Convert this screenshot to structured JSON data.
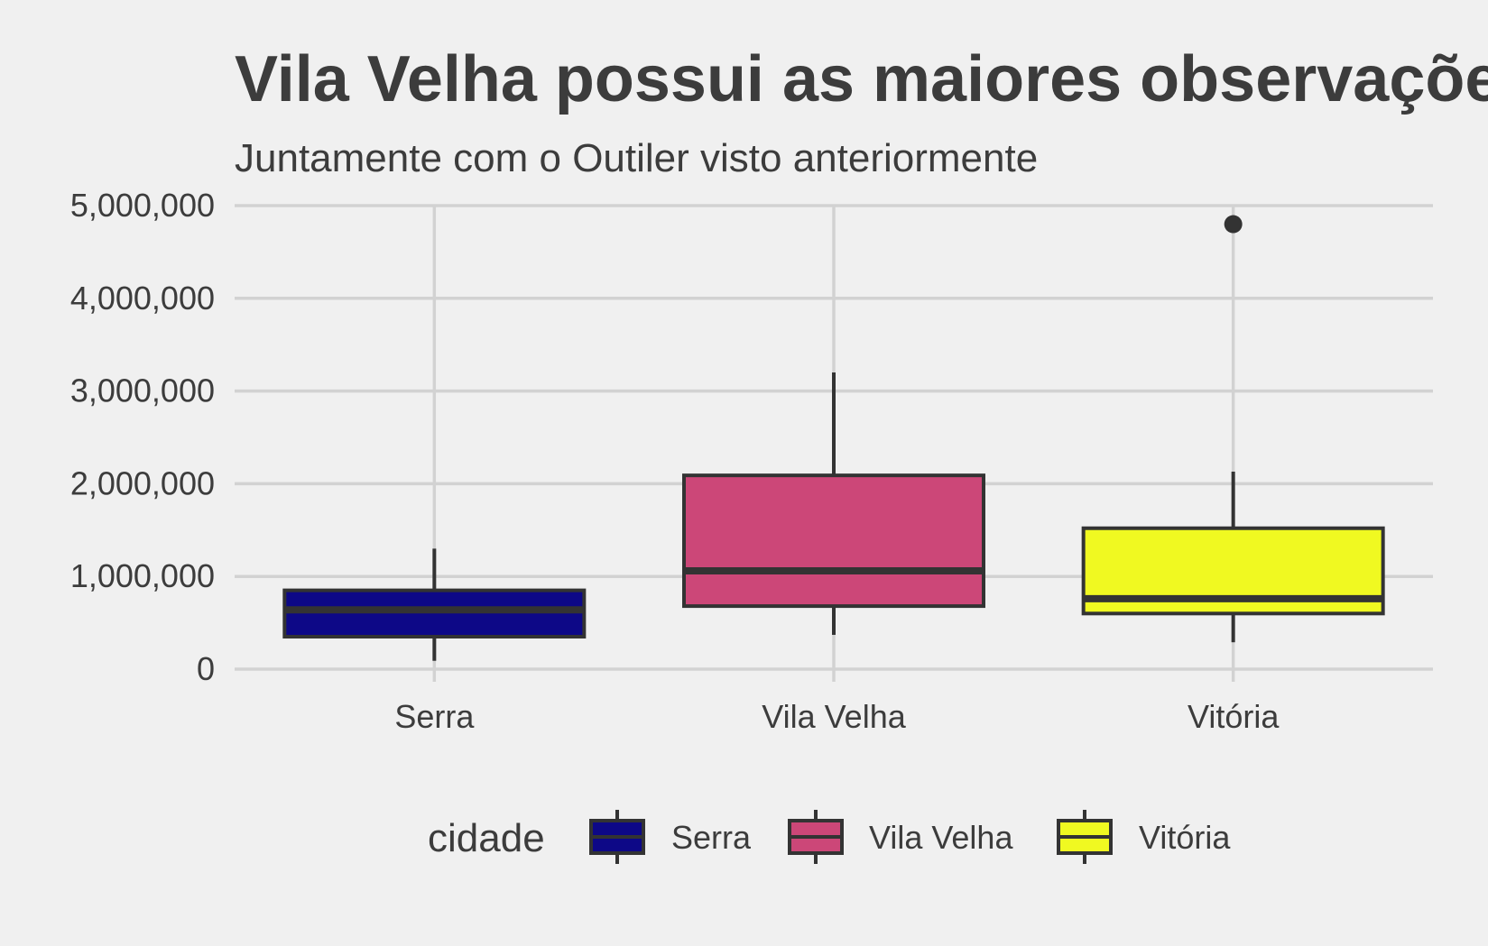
{
  "chart_data": {
    "type": "boxplot",
    "title": "Vila Velha possui as maiores observações",
    "subtitle": "Juntamente com o Outiler visto anteriormente",
    "xlabel": "",
    "ylabel": "",
    "ylim": [
      0,
      5000000
    ],
    "y_ticks": [
      0,
      1000000,
      2000000,
      3000000,
      4000000,
      5000000
    ],
    "y_tick_labels": [
      "0",
      "1,000,000",
      "2,000,000",
      "3,000,000",
      "4,000,000",
      "5,000,000"
    ],
    "grid": true,
    "legend": {
      "title": "cidade",
      "placement": "bottom"
    },
    "categories": [
      "Serra",
      "Vila Velha",
      "Vitória"
    ],
    "series": [
      {
        "name": "Serra",
        "color": "#0d0887",
        "min": 90000,
        "q1": 350000,
        "median": 640000,
        "q3": 850000,
        "max": 1300000,
        "outliers": []
      },
      {
        "name": "Vila Velha",
        "color": "#cc4778",
        "min": 370000,
        "q1": 680000,
        "median": 1060000,
        "q3": 2090000,
        "max": 3200000,
        "outliers": []
      },
      {
        "name": "Vitória",
        "color": "#f0f921",
        "min": 290000,
        "q1": 600000,
        "median": 760000,
        "q3": 1520000,
        "max": 2130000,
        "outliers": [
          4800000
        ]
      }
    ]
  }
}
